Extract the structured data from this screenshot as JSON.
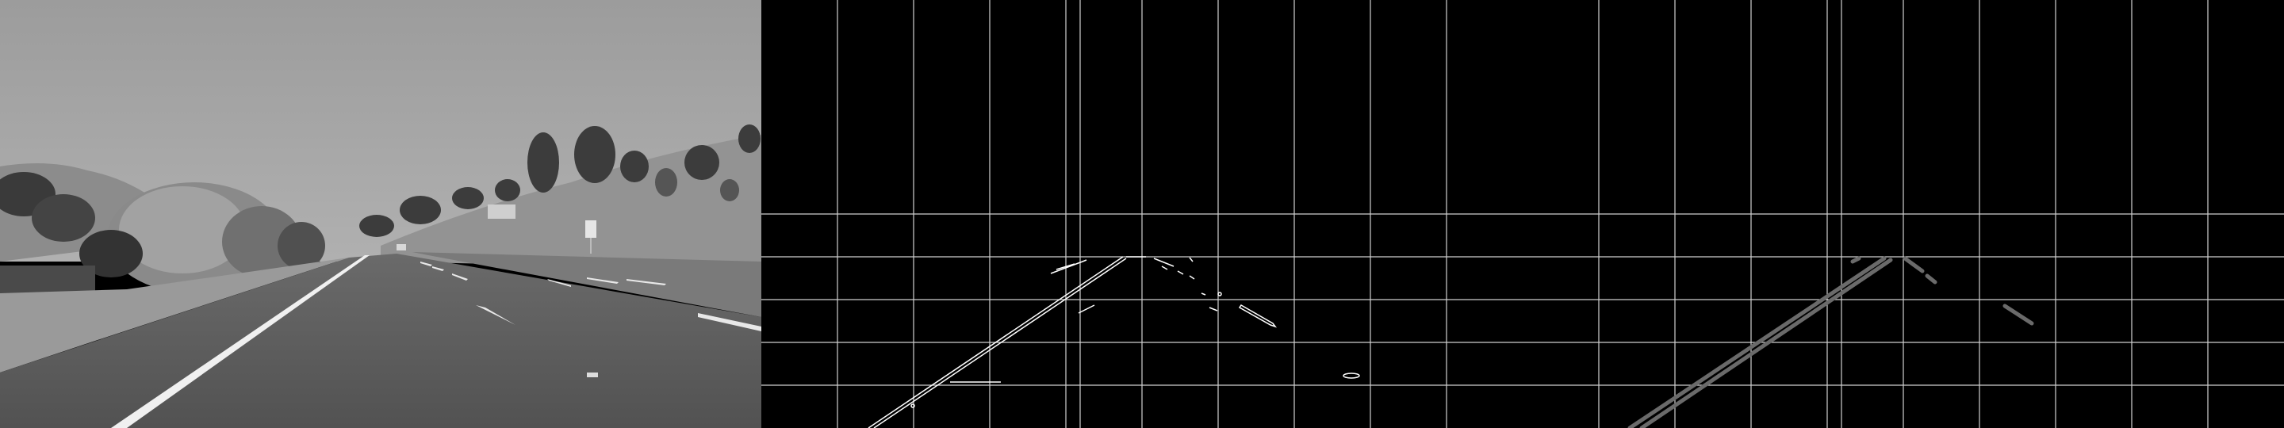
{
  "panels": [
    {
      "name": "grayscale-road-photo"
    },
    {
      "name": "canny-edges-with-grid"
    },
    {
      "name": "hough-lines-with-grid"
    }
  ],
  "colors": {
    "sky": "#a6a6a6",
    "road": "#5a5a5a",
    "grid": "#cfcfcf",
    "edge": "#ffffff",
    "hough_line": "#6a6a6a"
  }
}
